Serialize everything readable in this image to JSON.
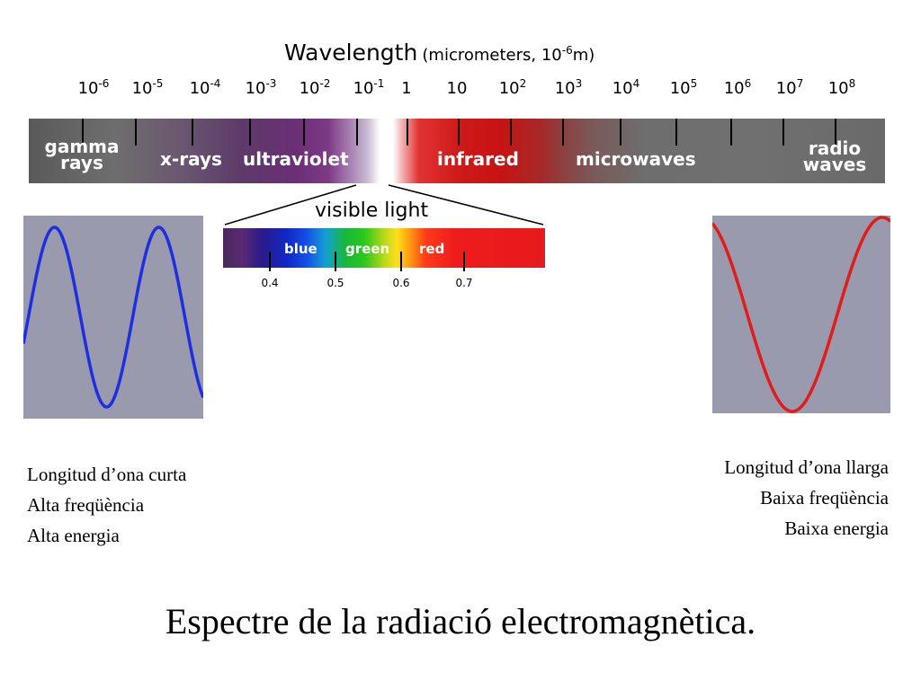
{
  "header": {
    "wavelength_label": "Wavelength",
    "wavelength_unit_prefix": "(micrometers, 10",
    "wavelength_unit_exp": "-6",
    "wavelength_unit_suffix": "m)"
  },
  "scale_ticks": [
    {
      "base": "10",
      "exp": "-6"
    },
    {
      "base": "10",
      "exp": "-5"
    },
    {
      "base": "10",
      "exp": "-4"
    },
    {
      "base": "10",
      "exp": "-3"
    },
    {
      "base": "10",
      "exp": "-2"
    },
    {
      "base": "10",
      "exp": "-1"
    },
    {
      "base": "1",
      "exp": ""
    },
    {
      "base": "10",
      "exp": ""
    },
    {
      "base": "10",
      "exp": "2"
    },
    {
      "base": "10",
      "exp": "3"
    },
    {
      "base": "10",
      "exp": "4"
    },
    {
      "base": "10",
      "exp": "5"
    },
    {
      "base": "10",
      "exp": "6"
    },
    {
      "base": "10",
      "exp": "7"
    },
    {
      "base": "10",
      "exp": "8"
    }
  ],
  "spectrum_bands": {
    "gamma_line1": "gamma",
    "gamma_line2": "rays",
    "xrays": "x-rays",
    "ultraviolet": "ultraviolet",
    "infrared": "infrared",
    "microwaves": "microwaves",
    "radio_line1": "radio",
    "radio_line2": "waves"
  },
  "visible": {
    "title": "visible light",
    "blue": "blue",
    "green": "green",
    "red": "red",
    "ticks": [
      "0.4",
      "0.5",
      "0.6",
      "0.7"
    ]
  },
  "left_caption": {
    "line1": "Longitud d’ona curta",
    "line2": "Alta freqüència",
    "line3": "Alta energia"
  },
  "right_caption": {
    "line1": "Longitud d’ona llarga",
    "line2": "Baixa freqüència",
    "line3": "Baixa energia"
  },
  "title": "Espectre de la radiació electromagnètica.",
  "colors": {
    "short_wave": "#1f2fe0",
    "long_wave": "#e01c1c",
    "wave_background": "#9a9aae"
  }
}
